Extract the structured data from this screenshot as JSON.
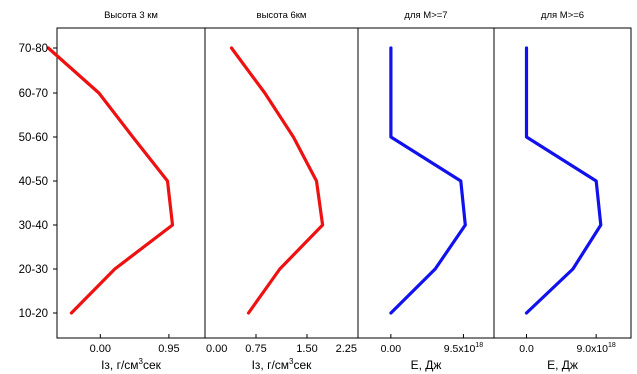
{
  "category_labels": [
    "10-20",
    "20-30",
    "30-40",
    "40-50",
    "50-60",
    "60-70",
    "70-80"
  ],
  "chart_data": [
    {
      "type": "line",
      "title": "Высота 3 км",
      "xlabel": "Iз, г/см³сек",
      "xlim": [
        -0.6,
        1.45
      ],
      "xticks": [
        {
          "value": 0.0,
          "label": "0.00"
        },
        {
          "value": 0.95,
          "label": "0.95"
        }
      ],
      "y": [
        "10-20",
        "20-30",
        "30-40",
        "40-50",
        "50-60",
        "60-70",
        "70-80"
      ],
      "x": [
        -0.4,
        0.2,
        1.0,
        0.93,
        0.45,
        -0.02,
        -0.72
      ],
      "color": "#ee1111"
    },
    {
      "type": "line",
      "title": "высота 6км",
      "xlabel": "Iз, г/см³сек",
      "xlim": [
        0.0,
        2.25
      ],
      "xticks": [
        {
          "value": 0.0,
          "label": "0.00"
        },
        {
          "value": 0.75,
          "label": "0.75"
        },
        {
          "value": 1.5,
          "label": "1.50"
        },
        {
          "value": 2.25,
          "label": "2.25"
        }
      ],
      "y": [
        "10-20",
        "20-30",
        "30-40",
        "40-50",
        "50-60",
        "60-70",
        "70-80"
      ],
      "x": [
        0.64,
        1.1,
        1.73,
        1.64,
        1.3,
        0.88,
        0.39
      ],
      "color": "#ee1111"
    },
    {
      "type": "line",
      "title": "для M>=7",
      "xlabel": "E, Дж",
      "xtick_labels": [
        "0.00",
        "9.5x10¹⁸"
      ],
      "xtick_values": [
        0.0,
        9.5e+18
      ],
      "xlim": [
        -4.3e+18,
        1.35e+19
      ],
      "y": [
        "10-20",
        "20-30",
        "30-40",
        "40-50",
        "50-60",
        "60-70",
        "70-80"
      ],
      "x": [
        0.0,
        5.8e+18,
        9.75e+18,
        9.15e+18,
        0.0,
        0.0,
        0.0
      ],
      "color": "#1111ee"
    },
    {
      "type": "line",
      "title": "для M>=6",
      "xlabel": "E, Дж",
      "xtick_labels": [
        "0.0",
        "9.0x10¹⁸"
      ],
      "xtick_values": [
        0.0,
        9e+18
      ],
      "xlim": [
        -4.2e+18,
        1.35e+19
      ],
      "y": [
        "10-20",
        "20-30",
        "30-40",
        "40-50",
        "50-60",
        "60-70",
        "70-80"
      ],
      "x": [
        0.0,
        6e+18,
        9.6e+18,
        9e+18,
        0.0,
        0.0,
        0.0
      ],
      "color": "#1111ee"
    }
  ]
}
